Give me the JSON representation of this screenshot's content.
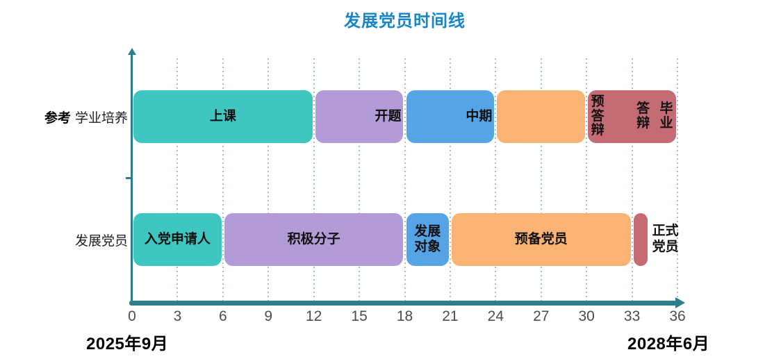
{
  "chart_data": {
    "type": "timeline",
    "title": "发展党员时间线",
    "title_color": "#1686c9",
    "x_axis": {
      "min": 0,
      "max": 36,
      "tick_step": 3,
      "ticks": [
        0,
        3,
        6,
        9,
        12,
        15,
        18,
        21,
        24,
        27,
        30,
        33,
        36
      ],
      "start_label": "2025年9月",
      "end_label": "2028年6月",
      "axis_color": "#2e7d8c",
      "gridline_color": "#9cc5ca",
      "grid": "dotted"
    },
    "palette": {
      "teal": "#3ec6c0",
      "purple": "#b39bd8",
      "blue": "#56a3e6",
      "orange": "#fbb375",
      "maroon": "#c56b74"
    },
    "rows": [
      {
        "name": "学业培养",
        "label_prefix": "参考",
        "label": "学业培养",
        "bars": [
          {
            "label": "上课",
            "start": 0,
            "end": 12,
            "color": "#3ec6c0",
            "label_pos": "center"
          },
          {
            "label": "开题",
            "start": 12,
            "end": 18,
            "color": "#b39bd8",
            "label_pos": "right"
          },
          {
            "label": "中期",
            "start": 18,
            "end": 24,
            "color": "#56a3e6",
            "label_pos": "right"
          },
          {
            "label": "",
            "start": 24,
            "end": 30,
            "color": "#fbb375",
            "label_pos": "none"
          },
          {
            "label": "",
            "start": 30,
            "end": 36,
            "color": "#c56b74",
            "label_pos": "none"
          }
        ],
        "milestones": [
          {
            "text": "预答辩",
            "at": 30,
            "side": "after"
          },
          {
            "text": "答辩",
            "at": 33,
            "side": "after"
          },
          {
            "text": "毕业",
            "at": 36,
            "side": "before"
          }
        ]
      },
      {
        "name": "发展党员",
        "label_prefix": "",
        "label": "发展党员",
        "bars": [
          {
            "label": "入党申请人",
            "start": 0,
            "end": 6,
            "color": "#3ec6c0",
            "label_pos": "center"
          },
          {
            "label": "积极分子",
            "start": 6,
            "end": 18,
            "color": "#b39bd8",
            "label_pos": "center"
          },
          {
            "label": "发展对象",
            "start": 18,
            "end": 21,
            "color": "#56a3e6",
            "label_pos": "center-wrap"
          },
          {
            "label": "预备党员",
            "start": 21,
            "end": 33,
            "color": "#fbb375",
            "label_pos": "center"
          },
          {
            "label": "正式党员",
            "start": 33,
            "end": 34.1,
            "color": "#c56b74",
            "label_pos": "outside-right"
          }
        ],
        "milestones": []
      }
    ]
  }
}
